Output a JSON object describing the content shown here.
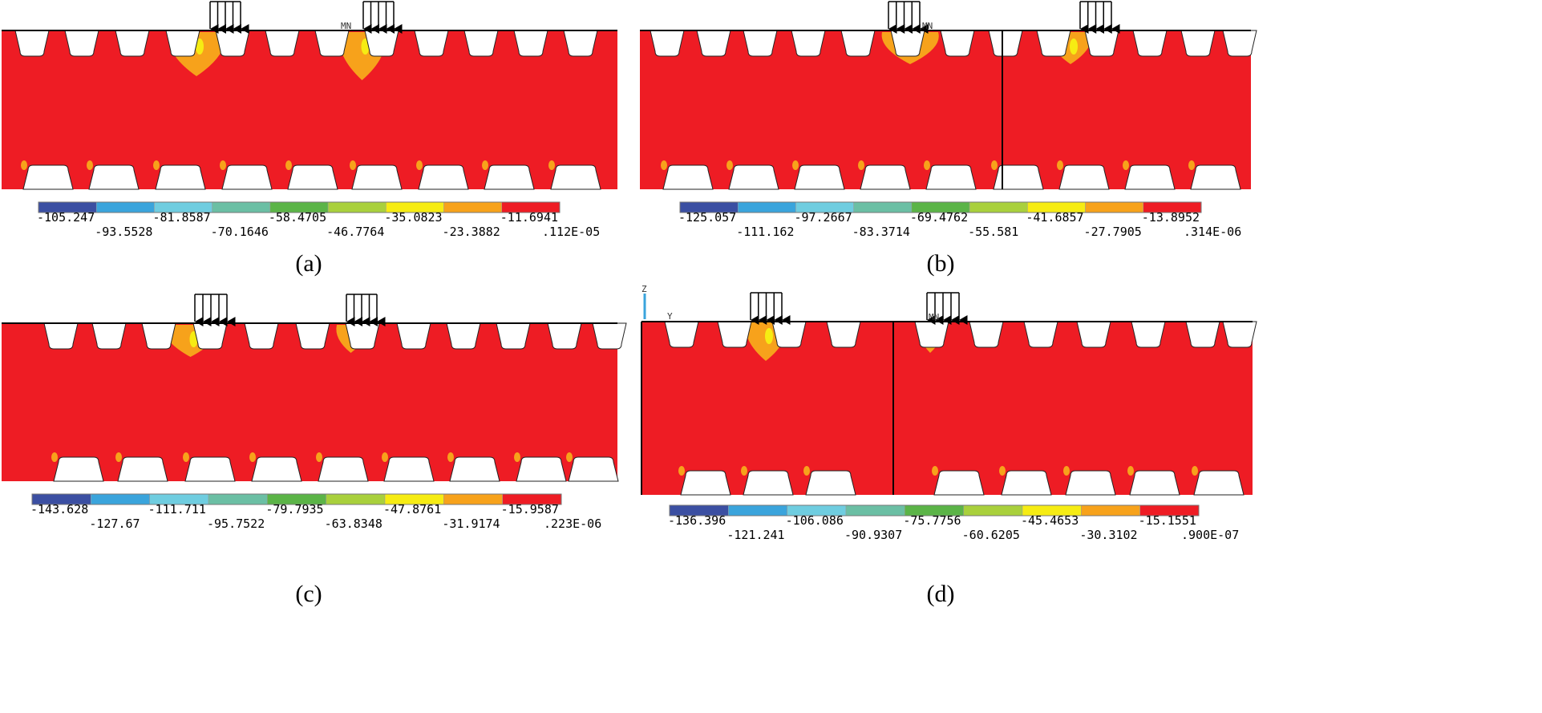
{
  "colors": {
    "stress_red": "#ee1c24",
    "stress_orange": "#f7a21b",
    "stress_yellow": "#f6ec13",
    "stress_lightgreen": "#a9d03c",
    "stress_green": "#5bb447",
    "stress_teal": "#6bbfa4",
    "stress_lightblue": "#6fcde0",
    "stress_blue": "#3aa4dc",
    "stress_darkblue": "#3b4fa2",
    "background": "#ffffff",
    "line": "#000000"
  },
  "legend_palette": [
    "#3b4fa2",
    "#3aa4dc",
    "#6fcde0",
    "#6bbfa4",
    "#5bb447",
    "#a9d03c",
    "#f6ec13",
    "#f7a21b",
    "#ee1c24"
  ],
  "panels": [
    {
      "caption": "(a)",
      "scale_values": [
        "-105.247",
        "-93.5528",
        "-81.8587",
        "-70.1646",
        "-58.4705",
        "-46.7764",
        "-35.0823",
        "-23.3882",
        "-11.6941",
        ".112E-05"
      ],
      "top_marker": "MN",
      "joints": 0,
      "bottom_teeth": true
    },
    {
      "caption": "(b)",
      "scale_values": [
        "-125.057",
        "-111.162",
        "-97.2667",
        "-83.3714",
        "-69.4762",
        "-55.581",
        "-41.6857",
        "-27.7905",
        "-13.8952",
        ".314E-06"
      ],
      "top_marker": "MN",
      "joints": 1,
      "bottom_teeth": true
    },
    {
      "caption": "(c)",
      "scale_values": [
        "-143.628",
        "-127.67",
        "-111.711",
        "-95.7522",
        "-79.7935",
        "-63.8348",
        "-47.8761",
        "-31.9174",
        "-15.9587",
        ".223E-06"
      ],
      "top_marker": "",
      "joints": 0,
      "bottom_teeth": true
    },
    {
      "caption": "(d)",
      "scale_values": [
        "-136.396",
        "-121.241",
        "-106.086",
        "-90.9307",
        "-75.7756",
        "-60.6205",
        "-45.4653",
        "-30.3102",
        "-15.1551",
        ".900E-07"
      ],
      "top_marker": "MN",
      "joints": 1,
      "bottom_teeth": true,
      "axis_labels": [
        "Z",
        "Y"
      ]
    }
  ]
}
